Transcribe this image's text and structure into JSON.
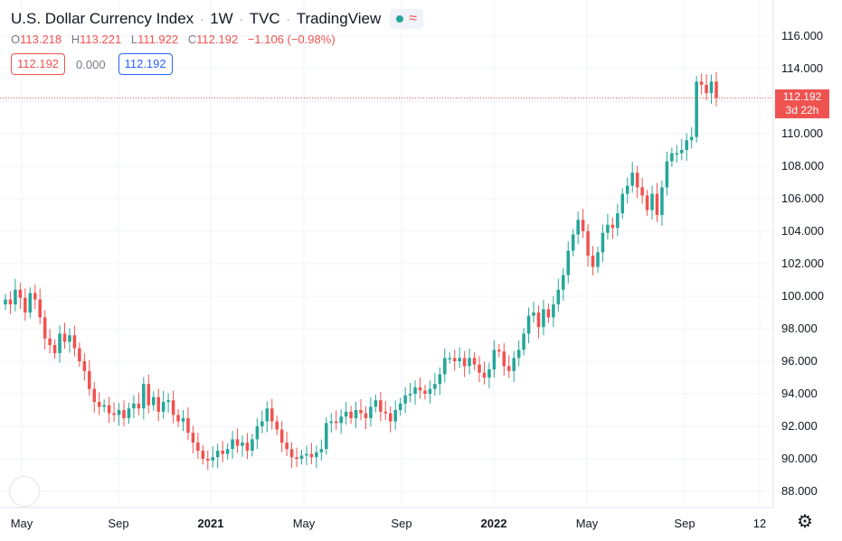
{
  "header": {
    "symbol_name": "U.S. Dollar Currency Index",
    "interval": "1W",
    "exchange": "TVC",
    "source": "TradingView",
    "separator": "·",
    "wave_icon": "≈"
  },
  "ohlc": {
    "o_label": "O",
    "o_value": "113.218",
    "h_label": "H",
    "h_value": "113.221",
    "l_label": "L",
    "l_value": "111.922",
    "c_label": "C",
    "c_value": "112.192",
    "change": "−1.106 (−0.98%)"
  },
  "inputs": {
    "bid": "112.192",
    "spread": "0.000",
    "ask": "112.192"
  },
  "price_tag": {
    "price": "112.192",
    "countdown": "3d 22h"
  },
  "colors": {
    "up": "#26a69a",
    "down": "#ef5350",
    "grid": "#f0f3fa",
    "accent": "#2962ff"
  },
  "icons": {
    "settings": "gear-icon"
  },
  "chart_data": {
    "type": "candlestick",
    "y_ticks": [
      "116.000",
      "114.000",
      "112.000",
      "110.000",
      "108.000",
      "106.000",
      "104.000",
      "102.000",
      "100.000",
      "98.000",
      "96.000",
      "94.000",
      "92.000",
      "90.000",
      "88.000"
    ],
    "x_ticks": [
      "May",
      "Sep",
      "2021",
      "May",
      "Sep",
      "2022",
      "May",
      "Sep",
      "12"
    ],
    "ylim": [
      87.0,
      117.0
    ],
    "last_price": 112.192,
    "candles_close": [
      99.8,
      99.5,
      100.4,
      99.9,
      99.0,
      100.2,
      99.8,
      98.7,
      97.4,
      97.0,
      96.5,
      97.7,
      97.2,
      97.6,
      96.8,
      96.0,
      95.4,
      94.3,
      93.5,
      93.2,
      93.3,
      92.8,
      92.7,
      93.0,
      92.5,
      93.1,
      93.4,
      93.1,
      94.6,
      93.3,
      93.8,
      92.9,
      93.5,
      93.6,
      92.7,
      92.3,
      92.5,
      91.6,
      91.0,
      90.5,
      90.0,
      89.9,
      90.1,
      90.5,
      90.3,
      90.6,
      91.2,
      90.8,
      91.0,
      90.5,
      91.2,
      92.0,
      92.3,
      93.1,
      92.3,
      91.8,
      91.0,
      90.6,
      90.1,
      90.0,
      90.2,
      90.3,
      90.1,
      90.4,
      90.6,
      92.2,
      92.3,
      92.2,
      92.6,
      92.9,
      92.5,
      93.0,
      92.8,
      92.5,
      93.2,
      93.6,
      92.9,
      92.8,
      92.3,
      93.0,
      93.4,
      93.9,
      94.0,
      94.4,
      94.2,
      94.0,
      94.3,
      94.6,
      95.2,
      96.2,
      96.2,
      96.0,
      96.2,
      95.7,
      96.2,
      95.8,
      95.3,
      95.0,
      95.5,
      96.7,
      96.6,
      95.7,
      95.4,
      96.2,
      96.7,
      97.7,
      98.8,
      99.0,
      98.1,
      99.2,
      98.7,
      99.5,
      100.4,
      101.3,
      102.8,
      103.8,
      104.7,
      104.0,
      102.5,
      101.8,
      102.7,
      103.9,
      104.4,
      104.2,
      105.1,
      106.3,
      106.8,
      107.6,
      106.7,
      106.2,
      105.3,
      106.3,
      105.0,
      106.7,
      108.3,
      108.8,
      108.8,
      109.0,
      109.6,
      109.8,
      113.2,
      113.0,
      112.5,
      113.2,
      112.2
    ]
  }
}
